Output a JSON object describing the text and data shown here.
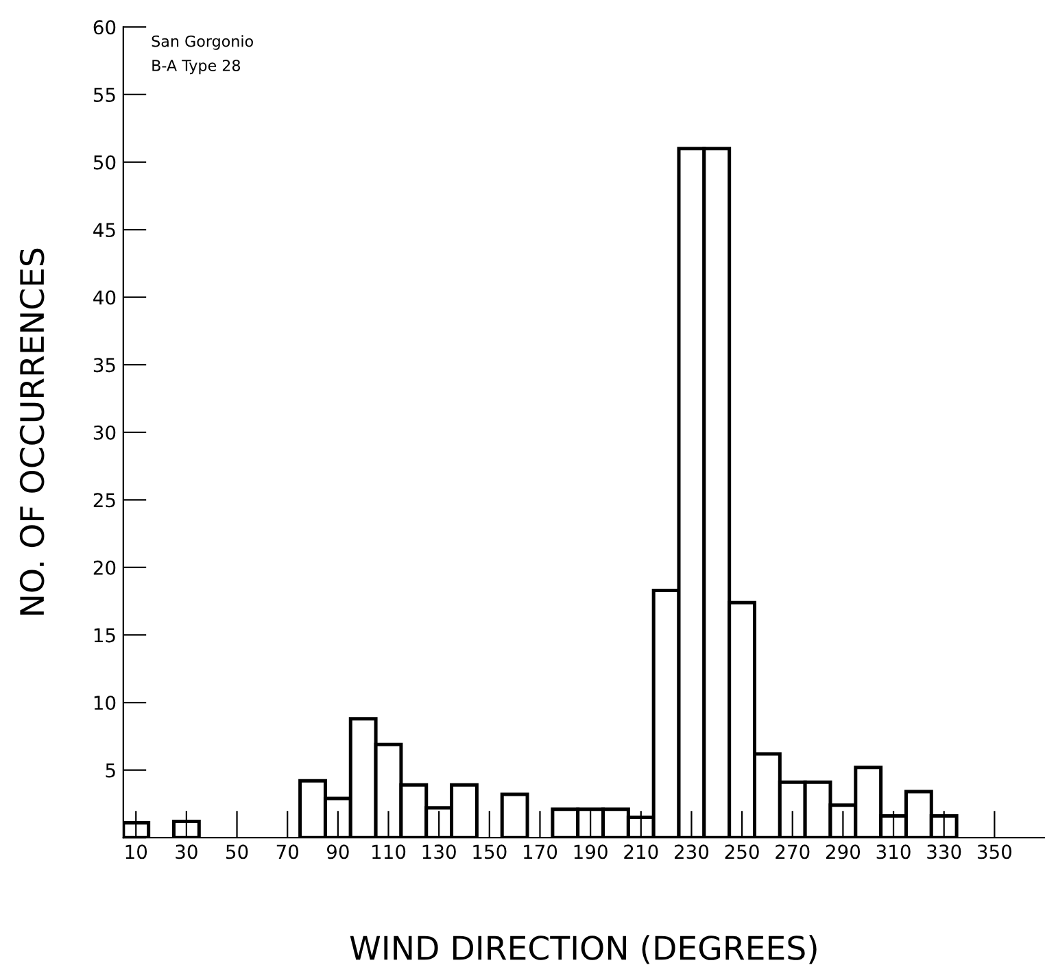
{
  "chart_data": {
    "type": "histogram",
    "xlabel": "WIND DIRECTION (DEGREES)",
    "ylabel": "NO. OF OCCURRENCES",
    "annotations": [
      "San Gorgonio",
      "B-A Type 28"
    ],
    "bins": [
      5,
      15,
      25,
      35,
      45,
      55,
      65,
      75,
      85,
      95,
      105,
      115,
      125,
      135,
      145,
      155,
      165,
      175,
      185,
      195,
      205,
      215,
      225,
      235,
      245,
      255,
      265,
      275,
      285,
      295,
      305,
      315,
      325,
      335
    ],
    "values": [
      1.1,
      0,
      1.2,
      0,
      0,
      0,
      0,
      4.2,
      2.9,
      8.8,
      6.9,
      3.9,
      2.2,
      3.9,
      0,
      3.2,
      0,
      2.1,
      2.1,
      2.1,
      1.5,
      18.3,
      51,
      51,
      17.4,
      6.2,
      4.1,
      4.1,
      2.4,
      5.2,
      1.6,
      3.4,
      1.6
    ],
    "color": "#ffffff",
    "xlim": [
      5,
      370
    ],
    "ylim": [
      0,
      60
    ],
    "xticks": [
      10,
      30,
      50,
      70,
      90,
      110,
      130,
      150,
      170,
      190,
      210,
      230,
      250,
      270,
      290,
      310,
      330,
      350
    ],
    "yticks": [
      {
        "value": 0,
        "label": null
      },
      5,
      10,
      15,
      20,
      25,
      30,
      35,
      40,
      45,
      50,
      55,
      60
    ],
    "grid": false,
    "legend": false
  }
}
